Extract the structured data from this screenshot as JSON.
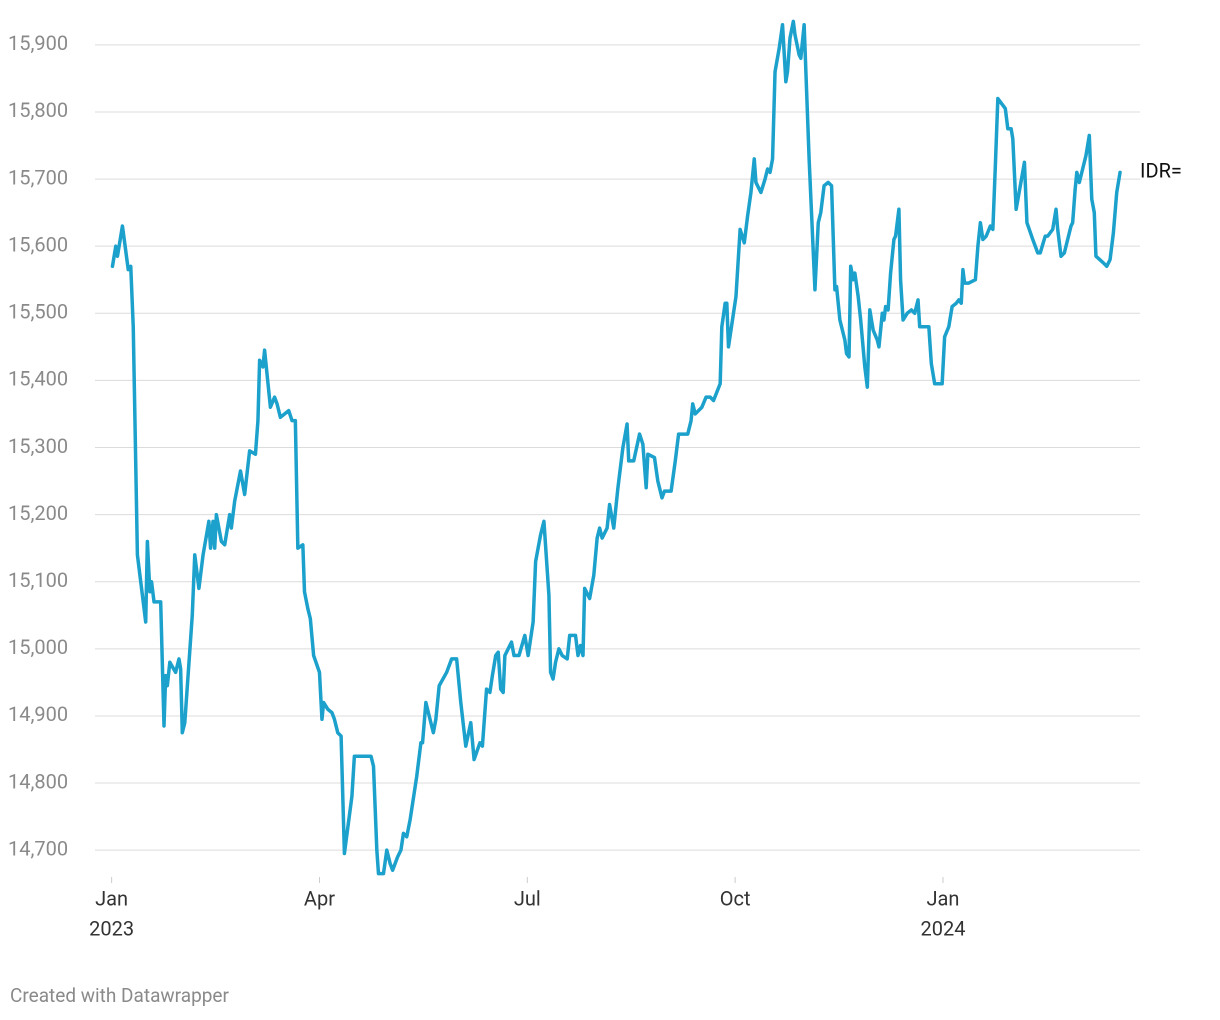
{
  "chart_data": {
    "type": "line",
    "x": [
      2023.001,
      2023.005,
      2023.007,
      2023.013,
      2023.02,
      2023.023,
      2023.026,
      2023.031,
      2023.041,
      2023.043,
      2023.046,
      2023.048,
      2023.051,
      2023.059,
      2023.063,
      2023.065,
      2023.067,
      2023.07,
      2023.077,
      2023.081,
      2023.083,
      2023.085,
      2023.088,
      2023.097,
      2023.1,
      2023.105,
      2023.11,
      2023.117,
      2023.119,
      2023.122,
      2023.124,
      2023.126,
      2023.132,
      2023.136,
      2023.142,
      2023.144,
      2023.148,
      2023.155,
      2023.16,
      2023.166,
      2023.173,
      2023.176,
      2023.178,
      2023.182,
      2023.184,
      2023.191,
      2023.196,
      2023.199,
      2023.203,
      2023.208,
      2023.213,
      2023.217,
      2023.221,
      2023.224,
      2023.23,
      2023.232,
      2023.236,
      2023.239,
      2023.243,
      2023.25,
      2023.253,
      2023.255,
      2023.26,
      2023.265,
      2023.268,
      2023.272,
      2023.276,
      2023.28,
      2023.289,
      2023.292,
      2023.312,
      2023.315,
      2023.319,
      2023.321,
      2023.327,
      2023.331,
      2023.335,
      2023.338,
      2023.344,
      2023.348,
      2023.351,
      2023.355,
      2023.359,
      2023.367,
      2023.372,
      2023.374,
      2023.378,
      2023.385,
      2023.387,
      2023.39,
      2023.394,
      2023.403,
      2023.409,
      2023.415,
      2023.42,
      2023.426,
      2023.432,
      2023.436,
      2023.443,
      2023.446,
      2023.451,
      2023.455,
      2023.458,
      2023.462,
      2023.465,
      2023.468,
      2023.471,
      2023.473,
      2023.481,
      2023.484,
      2023.49,
      2023.497,
      2023.501,
      2023.507,
      2023.51,
      2023.516,
      2023.52,
      2023.526,
      2023.528,
      2023.531,
      2023.534,
      2023.538,
      2023.542,
      2023.548,
      2023.551,
      2023.558,
      2023.561,
      2023.564,
      2023.567,
      2023.569,
      2023.575,
      2023.58,
      2023.584,
      2023.587,
      2023.59,
      2023.596,
      2023.599,
      2023.604,
      2023.609,
      2023.615,
      2023.62,
      2023.622,
      2023.628,
      2023.635,
      2023.639,
      2023.643,
      2023.645,
      2023.653,
      2023.657,
      2023.662,
      2023.665,
      2023.673,
      2023.678,
      2023.682,
      2023.693,
      2023.697,
      2023.699,
      2023.702,
      2023.71,
      2023.715,
      2023.72,
      2023.724,
      2023.732,
      2023.734,
      2023.738,
      2023.74,
      2023.742,
      2023.751,
      2023.756,
      2023.761,
      2023.765,
      2023.769,
      2023.773,
      2023.775,
      2023.781,
      2023.786,
      2023.789,
      2023.792,
      2023.795,
      2023.798,
      2023.803,
      2023.807,
      2023.811,
      2023.813,
      2023.816,
      2023.82,
      2023.822,
      2023.827,
      2023.829,
      2023.833,
      2023.839,
      2023.846,
      2023.85,
      2023.853,
      2023.857,
      2023.862,
      2023.866,
      2023.87,
      2023.872,
      2023.876,
      2023.882,
      2023.884,
      2023.887,
      2023.889,
      2023.892,
      2023.894,
      2023.898,
      2023.901,
      2023.906,
      2023.909,
      2023.912,
      2023.916,
      2023.921,
      2023.923,
      2023.927,
      2023.929,
      2023.931,
      2023.934,
      2023.937,
      2023.941,
      2023.943,
      2023.947,
      2023.949,
      2023.952,
      2023.957,
      2023.962,
      2023.966,
      2023.97,
      2023.972,
      2023.983,
      2023.986,
      2023.99,
      2023.999,
      2024.002,
      2024.007,
      2024.011,
      2024.016,
      2024.019,
      2024.022,
      2024.024,
      2024.026,
      2024.031,
      2024.039,
      2024.042,
      2024.045,
      2024.048,
      2024.052,
      2024.057,
      2024.06,
      2024.063,
      2024.066,
      2024.075,
      2024.078,
      2024.082,
      2024.084,
      2024.088,
      2024.093,
      2024.098,
      2024.101,
      2024.108,
      2024.114,
      2024.117,
      2024.123,
      2024.126,
      2024.132,
      2024.136,
      2024.138,
      2024.142,
      2024.146,
      2024.154,
      2024.156,
      2024.159,
      2024.161,
      2024.164,
      2024.168,
      2024.172,
      2024.176,
      2024.179,
      2024.182,
      2024.184,
      2024.193,
      2024.197,
      2024.201,
      2024.205,
      2024.209,
      2024.213
    ],
    "series": [
      {
        "name": "IDR=",
        "color": "#1ba1cb",
        "values": [
          15570,
          15600,
          15585,
          15630,
          15565,
          15570,
          15480,
          15140,
          15040,
          15160,
          15085,
          15100,
          15070,
          15070,
          14885,
          14960,
          14945,
          14980,
          14965,
          14985,
          14970,
          14875,
          14890,
          15050,
          15140,
          15090,
          15140,
          15190,
          15150,
          15190,
          15150,
          15200,
          15160,
          15155,
          15200,
          15180,
          15220,
          15265,
          15230,
          15295,
          15290,
          15340,
          15430,
          15420,
          15445,
          15360,
          15375,
          15365,
          15345,
          15350,
          15355,
          15340,
          15340,
          15150,
          15155,
          15085,
          15060,
          15045,
          14990,
          14965,
          14895,
          14920,
          14910,
          14905,
          14895,
          14875,
          14870,
          14695,
          14780,
          14840,
          14840,
          14825,
          14700,
          14665,
          14665,
          14700,
          14680,
          14670,
          14690,
          14700,
          14725,
          14720,
          14745,
          14810,
          14860,
          14860,
          14920,
          14885,
          14875,
          14895,
          14945,
          14965,
          14985,
          14985,
          14920,
          14855,
          14890,
          14835,
          14860,
          14855,
          14940,
          14935,
          14960,
          14990,
          14995,
          14940,
          14935,
          14990,
          15010,
          14990,
          14990,
          15020,
          14990,
          15040,
          15130,
          15170,
          15190,
          15080,
          14965,
          14955,
          14980,
          15000,
          14990,
          14985,
          15020,
          15020,
          14990,
          15005,
          14990,
          15090,
          15075,
          15110,
          15165,
          15180,
          15165,
          15180,
          15215,
          15180,
          15240,
          15300,
          15335,
          15280,
          15280,
          15320,
          15305,
          15240,
          15290,
          15285,
          15250,
          15225,
          15235,
          15235,
          15280,
          15320,
          15320,
          15340,
          15365,
          15350,
          15360,
          15375,
          15375,
          15370,
          15395,
          15480,
          15515,
          15515,
          15450,
          15525,
          15625,
          15605,
          15645,
          15680,
          15730,
          15695,
          15680,
          15700,
          15715,
          15710,
          15730,
          15860,
          15895,
          15930,
          15845,
          15860,
          15910,
          15935,
          15915,
          15885,
          15880,
          15930,
          15730,
          15535,
          15635,
          15650,
          15690,
          15695,
          15690,
          15535,
          15540,
          15490,
          15460,
          15440,
          15435,
          15570,
          15550,
          15560,
          15525,
          15490,
          15420,
          15390,
          15505,
          15475,
          15460,
          15450,
          15500,
          15490,
          15510,
          15505,
          15560,
          15610,
          15615,
          15655,
          15550,
          15490,
          15500,
          15505,
          15500,
          15520,
          15480,
          15480,
          15425,
          15395,
          15395,
          15465,
          15480,
          15510,
          15515,
          15520,
          15515,
          15565,
          15545,
          15545,
          15550,
          15600,
          15635,
          15610,
          15615,
          15630,
          15625,
          15720,
          15820,
          15805,
          15775,
          15775,
          15760,
          15655,
          15690,
          15725,
          15635,
          15610,
          15590,
          15590,
          15615,
          15615,
          15625,
          15655,
          15625,
          15585,
          15590,
          15630,
          15635,
          15685,
          15710,
          15695,
          15715,
          15735,
          15765,
          15670,
          15650,
          15585,
          15575,
          15570,
          15580,
          15620,
          15680,
          15710
        ]
      }
    ],
    "xlim": [
      2022.98,
      2024.237
    ],
    "xticks": [
      {
        "value": 2023,
        "label": "Jan",
        "year": "2023"
      },
      {
        "value": 2023.25,
        "label": "Apr"
      },
      {
        "value": 2023.5,
        "label": "Jul"
      },
      {
        "value": 2023.75,
        "label": "Oct"
      },
      {
        "value": 2024,
        "label": "Jan",
        "year": "2024"
      }
    ],
    "ylim": [
      14660,
      15940
    ],
    "yticks": [
      {
        "value": 14700,
        "label": "14,700"
      },
      {
        "value": 14800,
        "label": "14,800"
      },
      {
        "value": 14900,
        "label": "14,900"
      },
      {
        "value": 15000,
        "label": "15,000"
      },
      {
        "value": 15100,
        "label": "15,100"
      },
      {
        "value": 15200,
        "label": "15,200"
      },
      {
        "value": 15300,
        "label": "15,300"
      },
      {
        "value": 15400,
        "label": "15,400"
      },
      {
        "value": 15500,
        "label": "15,500"
      },
      {
        "value": 15600,
        "label": "15,600"
      },
      {
        "value": 15700,
        "label": "15,700"
      },
      {
        "value": 15800,
        "label": "15,800"
      },
      {
        "value": 15900,
        "label": "15,900"
      }
    ],
    "grid": true,
    "credit": "Created with Datawrapper"
  }
}
